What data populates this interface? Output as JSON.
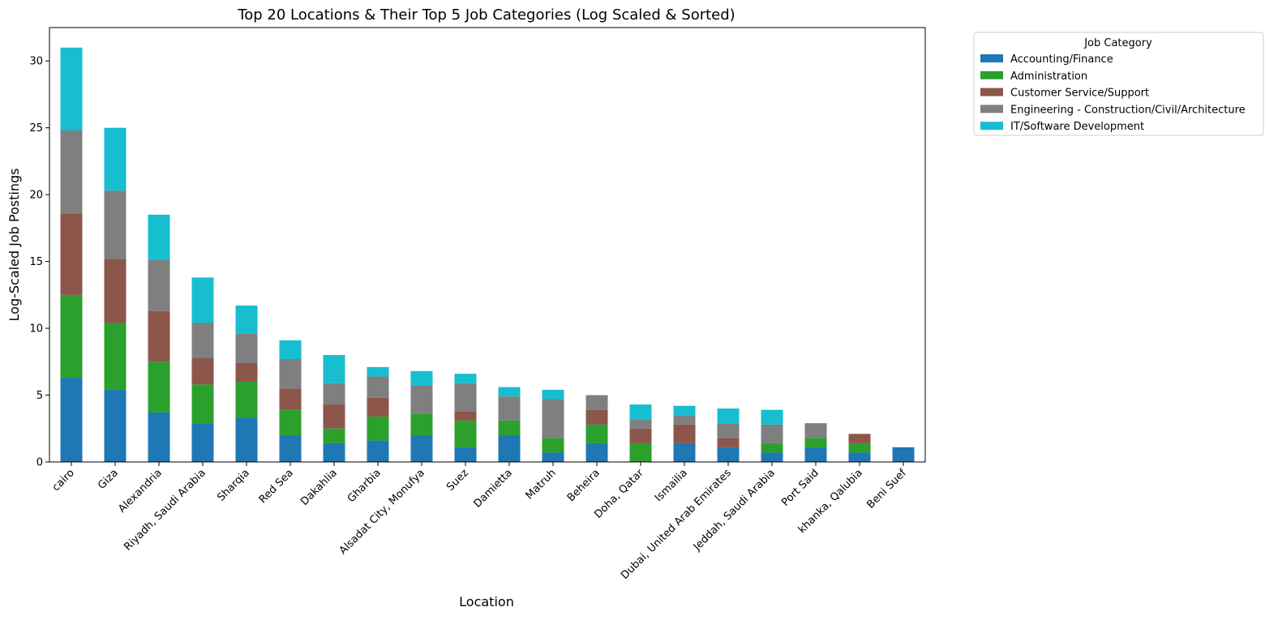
{
  "chart_data": {
    "type": "bar",
    "stacked": true,
    "title": "Top 20 Locations & Their Top 5 Job Categories (Log Scaled & Sorted)",
    "xlabel": "Location",
    "ylabel": "Log-Scaled Job Postings",
    "ylim": [
      0,
      32.5
    ],
    "yticks": [
      0,
      5,
      10,
      15,
      20,
      25,
      30
    ],
    "grid": false,
    "legend": {
      "title": "Job Category",
      "placement": "outside-top-right"
    },
    "categories": [
      "cairo",
      "Giza",
      "Alexandria",
      "Riyadh, Saudi Arabia",
      "Sharqia",
      "Red Sea",
      "Dakahlia",
      "Gharbia",
      "Alsadat City, Monufya",
      "Suez",
      "Damietta",
      "Matruh",
      "Beheira",
      "Doha, Qatar",
      "Ismailia",
      "Dubai, United Arab Emirates",
      "Jeddah, Saudi Arabia",
      "Port Said",
      "khanka, Qalubia",
      "Beni Suef"
    ],
    "series": [
      {
        "name": "Accounting/Finance",
        "color": "#1f77b4",
        "values": [
          6.3,
          5.4,
          3.7,
          2.9,
          3.3,
          2.0,
          1.4,
          1.6,
          2.0,
          1.1,
          2.0,
          0.7,
          1.4,
          0.0,
          1.4,
          1.1,
          0.7,
          1.1,
          0.7,
          1.1
        ]
      },
      {
        "name": "Administration",
        "color": "#2ca02c",
        "values": [
          6.2,
          5.0,
          3.8,
          2.9,
          2.7,
          1.9,
          1.1,
          1.8,
          1.6,
          2.0,
          1.1,
          1.1,
          1.4,
          1.4,
          0.0,
          0.0,
          0.7,
          0.7,
          0.7,
          0.0
        ]
      },
      {
        "name": "Customer Service/Support",
        "color": "#8c564b",
        "values": [
          6.1,
          4.8,
          3.8,
          2.0,
          1.4,
          1.6,
          1.8,
          1.4,
          0.0,
          0.7,
          0.0,
          0.0,
          1.1,
          1.1,
          1.4,
          0.7,
          0.0,
          0.0,
          0.7,
          0.0
        ]
      },
      {
        "name": "Engineering - Construction/Civil/Architecture",
        "color": "#7f7f7f",
        "values": [
          6.2,
          5.1,
          3.8,
          2.6,
          2.2,
          2.2,
          1.6,
          1.6,
          2.1,
          2.1,
          1.8,
          2.9,
          1.1,
          0.7,
          0.7,
          1.1,
          1.4,
          1.1,
          0.0,
          0.0
        ]
      },
      {
        "name": "IT/Software Development",
        "color": "#17becf",
        "values": [
          6.2,
          4.7,
          3.4,
          3.4,
          2.1,
          1.4,
          2.1,
          0.7,
          1.1,
          0.7,
          0.7,
          0.7,
          0.0,
          1.1,
          0.7,
          1.1,
          1.1,
          0.0,
          0.0,
          0.0
        ]
      }
    ]
  }
}
